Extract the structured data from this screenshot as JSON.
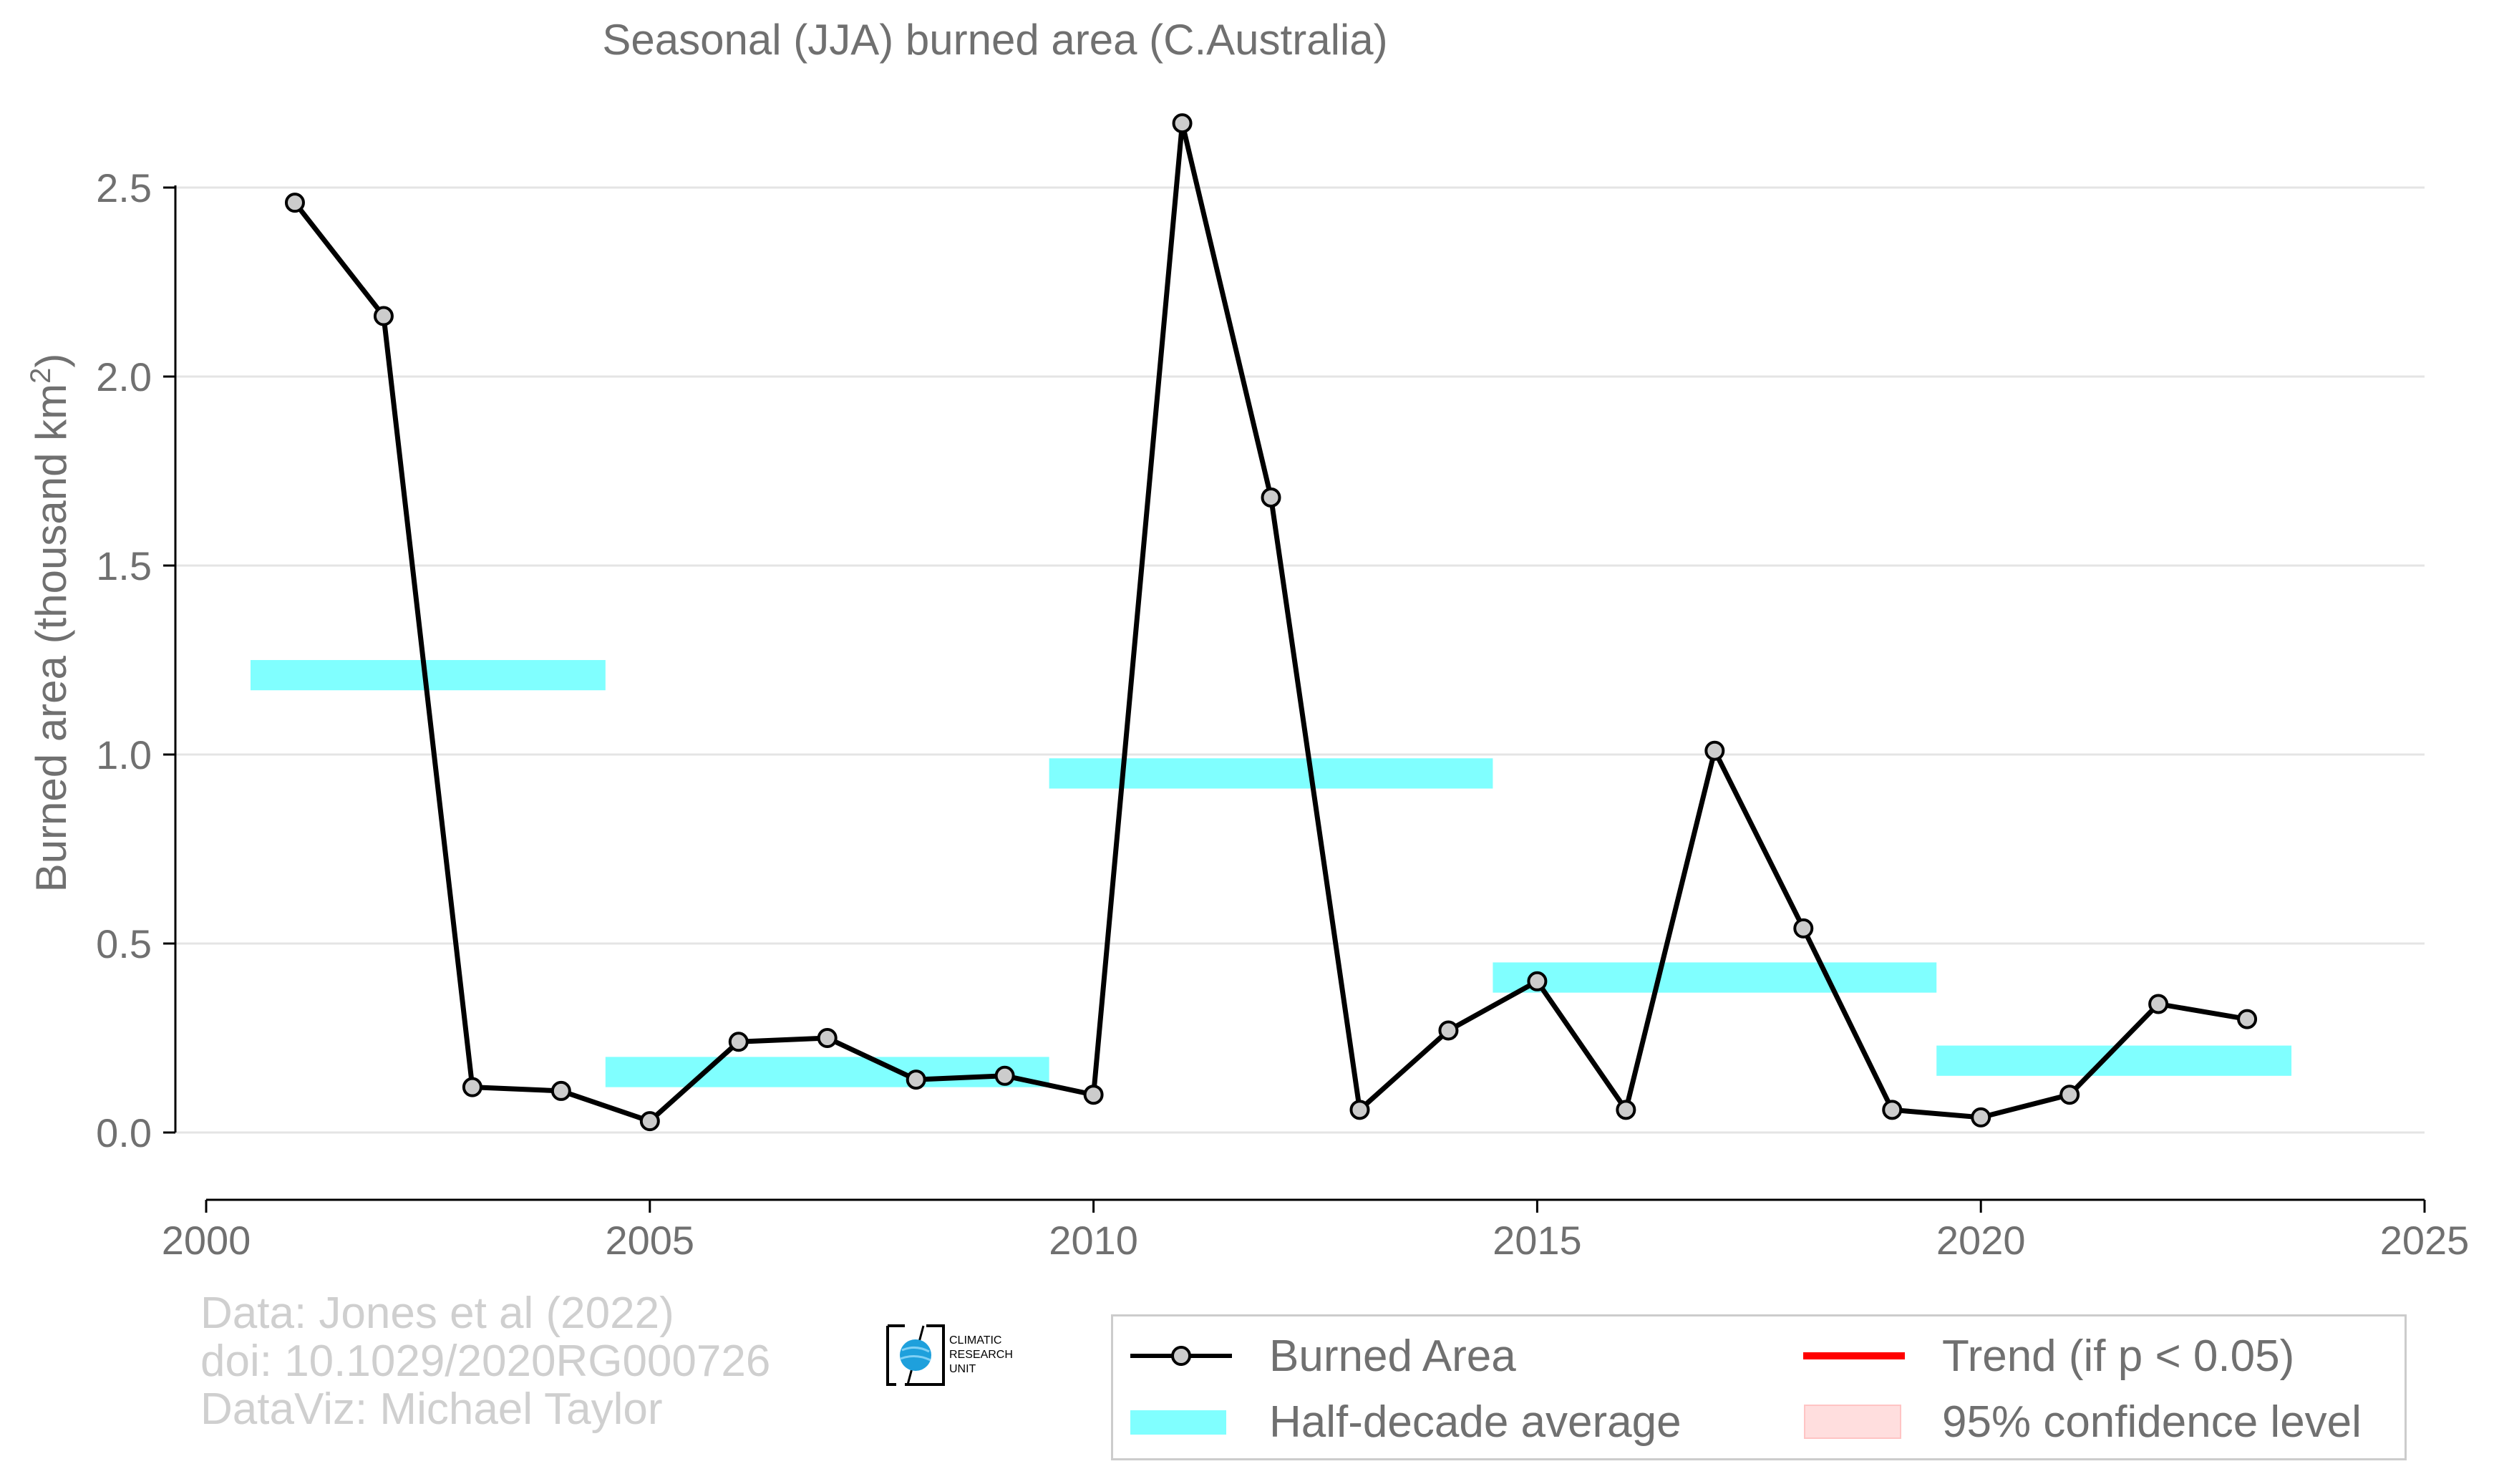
{
  "chart_data": {
    "type": "line",
    "title": "Seasonal (JJA) burned area (C.Australia)",
    "ylabel": "Burned area (thousand km",
    "ylabel_sup": "2",
    "ylabel_close": ")",
    "xlim": [
      2000,
      2025
    ],
    "ylim": [
      -0.18,
      2.8
    ],
    "x_ticks": [
      2000,
      2005,
      2010,
      2015,
      2020,
      2025
    ],
    "x_tick_labels": [
      "2000",
      "2005",
      "2010",
      "2015",
      "2020",
      "2025"
    ],
    "y_ticks": [
      0,
      0.5,
      1,
      1.5,
      2,
      2.5
    ],
    "y_tick_labels": [
      "0.0",
      "0.5",
      "1.0",
      "1.5",
      "2.0",
      "2.5"
    ],
    "grid": "horizontal",
    "series": [
      {
        "name": "Burned Area",
        "color": "#000000",
        "marker_fill": "#cccccc",
        "x": [
          2001,
          2002,
          2003,
          2004,
          2005,
          2006,
          2007,
          2008,
          2009,
          2010,
          2011,
          2012,
          2013,
          2014,
          2015,
          2016,
          2017,
          2018,
          2019,
          2020,
          2021,
          2022,
          2023
        ],
        "y": [
          2.46,
          2.16,
          0.12,
          0.11,
          0.03,
          0.24,
          0.25,
          0.14,
          0.15,
          0.1,
          2.67,
          1.68,
          0.06,
          0.27,
          0.4,
          0.06,
          1.01,
          0.54,
          0.06,
          0.04,
          0.1,
          0.34,
          0.3
        ]
      }
    ],
    "half_decade_average": {
      "name": "Half-decade average",
      "color": "#80ffff",
      "bars": [
        {
          "x0": 2000.5,
          "x1": 2004.5,
          "y": 1.21
        },
        {
          "x0": 2004.5,
          "x1": 2009.5,
          "y": 0.16
        },
        {
          "x0": 2009.5,
          "x1": 2014.5,
          "y": 0.95
        },
        {
          "x0": 2014.5,
          "x1": 2019.5,
          "y": 0.41
        },
        {
          "x0": 2019.5,
          "x1": 2023.5,
          "y": 0.19
        }
      ]
    },
    "legend": {
      "position": "bottom-right",
      "items": [
        {
          "label": "Burned Area",
          "kind": "line-marker",
          "color": "#000000"
        },
        {
          "label": "Trend (if p < 0.05)",
          "kind": "line",
          "color": "#ff0000"
        },
        {
          "label": "Half-decade average",
          "kind": "band",
          "color": "#80ffff"
        },
        {
          "label": "95% confidence level",
          "kind": "patch",
          "color": "#ffdede"
        }
      ]
    }
  },
  "credits": {
    "line1": "Data: Jones et al (2022)",
    "line2": "doi: 10.1029/2020RG000726",
    "line3": "DataViz: Michael Taylor"
  },
  "logo": {
    "line1": "CLIMATIC",
    "line2": "RESEARCH",
    "line3": "UNIT"
  }
}
